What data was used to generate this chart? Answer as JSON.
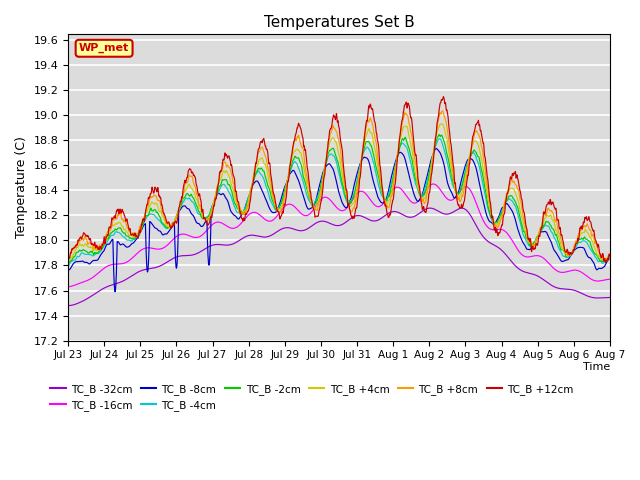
{
  "title": "Temperatures Set B",
  "xlabel": "Time",
  "ylabel": "Temperature (C)",
  "ylim": [
    17.2,
    19.65
  ],
  "yticks": [
    17.2,
    17.4,
    17.6,
    17.8,
    18.0,
    18.2,
    18.4,
    18.6,
    18.8,
    19.0,
    19.2,
    19.4,
    19.6
  ],
  "bg_color": "#dcdcdc",
  "series": [
    {
      "label": "TC_B -32cm",
      "color": "#9900cc"
    },
    {
      "label": "TC_B -16cm",
      "color": "#ff00ff"
    },
    {
      "label": "TC_B -8cm",
      "color": "#0000cc"
    },
    {
      "label": "TC_B -4cm",
      "color": "#00cccc"
    },
    {
      "label": "TC_B -2cm",
      "color": "#00cc00"
    },
    {
      "label": "TC_B +4cm",
      "color": "#cccc00"
    },
    {
      "label": "TC_B +8cm",
      "color": "#ff9900"
    },
    {
      "label": "TC_B +12cm",
      "color": "#cc0000"
    }
  ],
  "wp_met_box_color": "#ffff99",
  "wp_met_text_color": "#cc0000",
  "xtick_labels": [
    "Jul 23",
    "Jul 24",
    "Jul 25",
    "Jul 26",
    "Jul 27",
    "Jul 28",
    "Jul 29",
    "Jul 30",
    "Jul 31",
    "Aug 1",
    "Aug 2",
    "Aug 3",
    "Aug 4",
    "Aug 5",
    "Aug 6",
    "Aug 7"
  ],
  "n_points": 2000
}
